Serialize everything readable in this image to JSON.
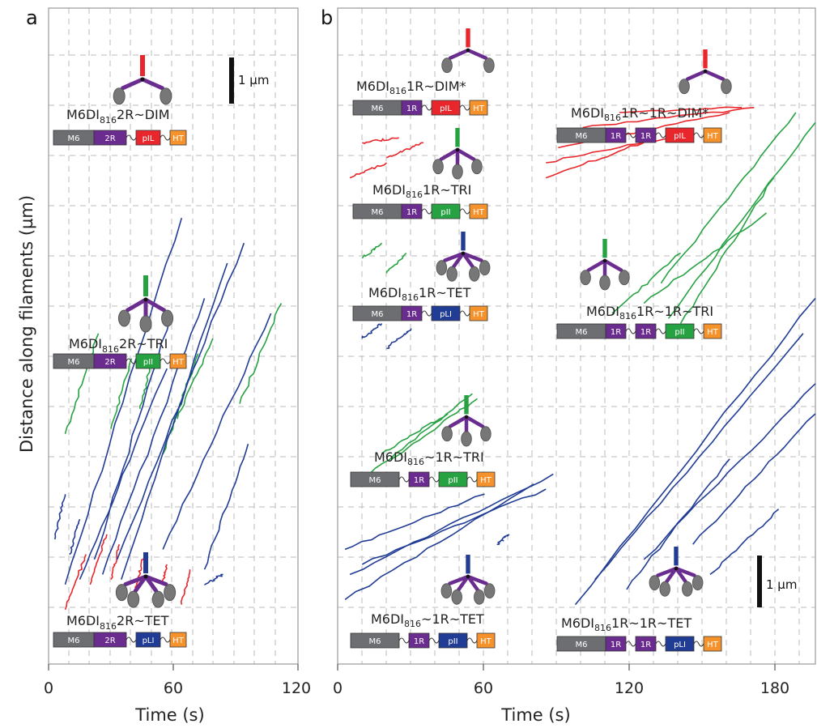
{
  "figure": {
    "ylabel": "Distance along filaments (µm)",
    "panels": [
      {
        "letter": "a",
        "xlabel": "Time (s)",
        "xticks": [
          "0",
          "60",
          "120"
        ]
      },
      {
        "letter": "b",
        "xlabel": "Time (s)",
        "xticks": [
          "0",
          "60",
          "120",
          "180"
        ]
      }
    ],
    "scale_bars": [
      {
        "label": "1 µm"
      },
      {
        "label": "1 µm"
      }
    ],
    "colors": {
      "dimer": "#e8262b",
      "trimer": "#27a243",
      "tetramer": "#213c95",
      "m6": "#6d6e71",
      "lever": "#6a2c8f",
      "ht": "#f5922b",
      "grid": "#bbbbbb"
    },
    "segment_labels": {
      "m6": "M6",
      "r2": "2R",
      "r1": "1R",
      "pil": "pIL",
      "pii": "pII",
      "pli": "pLI",
      "ht": "HT"
    },
    "constructs": [
      {
        "prefix": "M6DI",
        "sub": "816",
        "suffix": "2R~DIM"
      },
      {
        "prefix": "M6DI",
        "sub": "816",
        "suffix": "2R~TRI"
      },
      {
        "prefix": "M6DI",
        "sub": "816",
        "suffix": "2R~TET"
      },
      {
        "prefix": "M6DI",
        "sub": "816",
        "suffix": "1R~DIM*"
      },
      {
        "prefix": "M6DI",
        "sub": "816",
        "suffix": "1R~TRI"
      },
      {
        "prefix": "M6DI",
        "sub": "816",
        "suffix": "1R~TET"
      },
      {
        "prefix": "M6DI",
        "sub": "816",
        "suffix": "~1R~TRI"
      },
      {
        "prefix": "M6DI",
        "sub": "816",
        "suffix": "~1R~TET"
      },
      {
        "prefix": "M6DI",
        "sub": "816",
        "suffix": "1R~1R~DIM*"
      },
      {
        "prefix": "M6DI",
        "sub": "816",
        "suffix": "1R~1R~TRI"
      },
      {
        "prefix": "M6DI",
        "sub": "816",
        "suffix": "1R~1R~TET"
      }
    ]
  },
  "chart_data": [
    {
      "type": "line",
      "panel": "a",
      "xlabel": "Time (s)",
      "ylabel": "Distance along filaments (µm)",
      "xlim": [
        0,
        120
      ],
      "xticks": [
        0,
        60,
        120
      ],
      "grid": true,
      "series": [
        {
          "name": "M6DI816 2R~DIM",
          "kymograph_tracks": [
            [
              [
                8,
                0.6
              ],
              [
                18,
                1.7
              ]
            ],
            [
              [
                20,
                1.1
              ],
              [
                28,
                2.1
              ]
            ],
            [
              [
                30,
                1.2
              ],
              [
                34,
                1.9
              ]
            ],
            [
              [
                42,
                1.0
              ],
              [
                46,
                1.7
              ]
            ],
            [
              [
                55,
                1.1
              ],
              [
                57,
                1.5
              ]
            ],
            [
              [
                64,
                0.7
              ],
              [
                68,
                1.4
              ]
            ]
          ]
        },
        {
          "name": "M6DI816 2R~TRI",
          "kymograph_tracks": [
            [
              [
                8,
                4.1
              ],
              [
                24,
                6.1
              ]
            ],
            [
              [
                30,
                4.2
              ],
              [
                40,
                5.6
              ]
            ],
            [
              [
                44,
                4.6
              ],
              [
                50,
                5.6
              ]
            ],
            [
              [
                55,
                3.7
              ],
              [
                72,
                5.7
              ]
            ],
            [
              [
                60,
                4.3
              ],
              [
                66,
                5.0
              ]
            ],
            [
              [
                92,
                4.7
              ],
              [
                112,
                6.7
              ]
            ],
            [
              [
                62,
                4.4
              ],
              [
                79,
                6.0
              ]
            ]
          ]
        },
        {
          "name": "M6DI816 2R~TET",
          "kymograph_tracks": [
            [
              [
                3,
                2.0
              ],
              [
                8,
                2.9
              ]
            ],
            [
              [
                10,
                1.7
              ],
              [
                15,
                2.4
              ]
            ],
            [
              [
                8,
                1.1
              ],
              [
                64,
                8.4
              ]
            ],
            [
              [
                22,
                1.6
              ],
              [
                59,
                6.5
              ]
            ],
            [
              [
                15,
                1.2
              ],
              [
                57,
                5.4
              ]
            ],
            [
              [
                26,
                1.3
              ],
              [
                75,
                6.8
              ]
            ],
            [
              [
                33,
                1.6
              ],
              [
                94,
                7.9
              ]
            ],
            [
              [
                35,
                1.2
              ],
              [
                86,
                7.5
              ]
            ],
            [
              [
                55,
                1.8
              ],
              [
                107,
                6.5
              ]
            ],
            [
              [
                75,
                1.4
              ],
              [
                96,
                3.9
              ]
            ],
            [
              [
                75,
                1.1
              ],
              [
                84,
                1.3
              ]
            ]
          ]
        }
      ]
    },
    {
      "type": "line",
      "panel": "b",
      "xlabel": "Time (s)",
      "ylabel": "Distance along filaments (µm)",
      "xlim": [
        0,
        195
      ],
      "xticks": [
        0,
        60,
        120,
        180
      ],
      "grid": true,
      "series": [
        {
          "name": "M6DI816 1R~DIM*",
          "kymograph_tracks": [
            [
              [
                5,
                9.2
              ],
              [
                20,
                9.5
              ]
            ],
            [
              [
                20,
                9.6
              ],
              [
                35,
                9.9
              ]
            ],
            [
              [
                10,
                9.9
              ],
              [
                25,
                10.0
              ]
            ]
          ]
        },
        {
          "name": "M6DI816 1R~TRI",
          "kymograph_tracks": [
            [
              [
                10,
                7.6
              ],
              [
                18,
                7.9
              ]
            ],
            [
              [
                20,
                7.3
              ],
              [
                28,
                7.7
              ]
            ]
          ]
        },
        {
          "name": "M6DI816 1R~TET",
          "kymograph_tracks": [
            [
              [
                10,
                6.0
              ],
              [
                18,
                6.3
              ]
            ],
            [
              [
                20,
                5.8
              ],
              [
                30,
                6.2
              ]
            ]
          ]
        },
        {
          "name": "M6DI816 ~1R~TRI",
          "kymograph_tracks": [
            [
              [
                13,
                3.3
              ],
              [
                55,
                4.9
              ]
            ],
            [
              [
                18,
                3.7
              ],
              [
                45,
                4.5
              ]
            ],
            [
              [
                22,
                3.6
              ],
              [
                57,
                4.8
              ]
            ]
          ]
        },
        {
          "name": "M6DI816 ~1R~TET",
          "kymograph_tracks": [
            [
              [
                3,
                0.8
              ],
              [
                80,
                3.1
              ]
            ],
            [
              [
                5,
                1.3
              ],
              [
                88,
                3.3
              ]
            ],
            [
              [
                3,
                1.8
              ],
              [
                60,
                2.9
              ]
            ],
            [
              [
                10,
                1.5
              ],
              [
                85,
                3.0
              ]
            ],
            [
              [
                65,
                1.9
              ],
              [
                70,
                2.1
              ]
            ]
          ]
        },
        {
          "name": "M6DI816 1R~1R~DIM*",
          "kymograph_tracks": [
            [
              [
                85,
                9.2
              ],
              [
                125,
                9.9
              ]
            ],
            [
              [
                85,
                9.5
              ],
              [
                145,
                10.1
              ]
            ],
            [
              [
                90,
                9.8
              ],
              [
                160,
                10.5
              ]
            ],
            [
              [
                100,
                10.2
              ],
              [
                170,
                10.6
              ]
            ],
            [
              [
                115,
                10.5
              ],
              [
                165,
                10.6
              ]
            ]
          ]
        },
        {
          "name": "M6DI816 1R~1R~TRI",
          "kymograph_tracks": [
            [
              [
                132,
                7.1
              ],
              [
                187,
                10.5
              ]
            ],
            [
              [
                135,
                6.4
              ],
              [
                195,
                10.3
              ]
            ],
            [
              [
                125,
                6.7
              ],
              [
                175,
                8.5
              ]
            ],
            [
              [
                140,
                6.3
              ],
              [
                178,
                9.2
              ]
            ],
            [
              [
                112,
                6.5
              ],
              [
                140,
                7.7
              ]
            ]
          ]
        },
        {
          "name": "M6DI816 1R~1R~TET",
          "kymograph_tracks": [
            [
              [
                97,
                0.7
              ],
              [
                195,
                6.8
              ]
            ],
            [
              [
                105,
                1.2
              ],
              [
                190,
                6.1
              ]
            ],
            [
              [
                125,
                1.6
              ],
              [
                195,
                5.1
              ]
            ],
            [
              [
                145,
                1.9
              ],
              [
                195,
                4.5
              ]
            ],
            [
              [
                152,
                1.3
              ],
              [
                180,
                2.6
              ]
            ],
            [
              [
                118,
                1.0
              ],
              [
                160,
                3.6
              ]
            ]
          ]
        }
      ]
    }
  ]
}
